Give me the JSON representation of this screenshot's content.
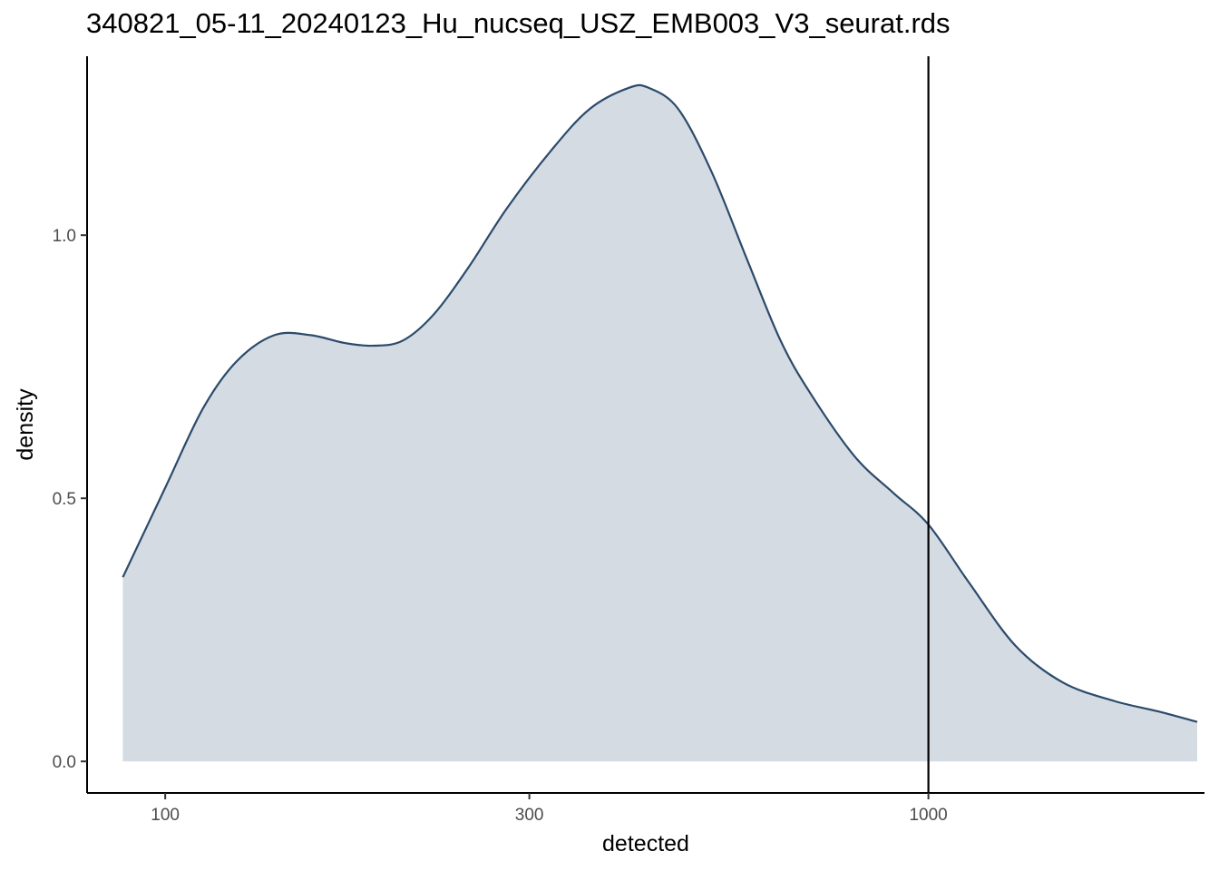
{
  "chart_data": {
    "type": "area",
    "title": "340821_05-11_20240123_Hu_nucseq_USZ_EMB003_V3_seurat.rds",
    "xlabel": "detected",
    "ylabel": "density",
    "x_scale": "log10",
    "xlim": [
      79,
      2300
    ],
    "ylim": [
      -0.06,
      1.34
    ],
    "x_ticks": [
      {
        "value": 100,
        "label": "100"
      },
      {
        "value": 300,
        "label": "300"
      },
      {
        "value": 1000,
        "label": "1000"
      }
    ],
    "y_ticks": [
      {
        "value": 0.0,
        "label": "0.0"
      },
      {
        "value": 0.5,
        "label": "0.5"
      },
      {
        "value": 1.0,
        "label": "1.0"
      }
    ],
    "grid": false,
    "series": [
      {
        "x": [
          88,
          100,
          112,
          124,
          139,
          155,
          172,
          188,
          205,
          225,
          250,
          280,
          320,
          360,
          405,
          430,
          470,
          520,
          580,
          640,
          700,
          800,
          900,
          1000,
          1130,
          1300,
          1500,
          1750,
          2000,
          2250
        ],
        "y": [
          0.35,
          0.52,
          0.67,
          0.76,
          0.81,
          0.81,
          0.795,
          0.79,
          0.8,
          0.85,
          0.94,
          1.05,
          1.16,
          1.24,
          1.28,
          1.28,
          1.24,
          1.12,
          0.95,
          0.8,
          0.7,
          0.58,
          0.51,
          0.45,
          0.34,
          0.22,
          0.15,
          0.115,
          0.095,
          0.075
        ]
      }
    ],
    "vline": {
      "x": 1000
    },
    "colors": {
      "line": "#2b4a6b",
      "fill": "#d4dbe2",
      "vline": "#000000",
      "axis": "#000000"
    }
  }
}
